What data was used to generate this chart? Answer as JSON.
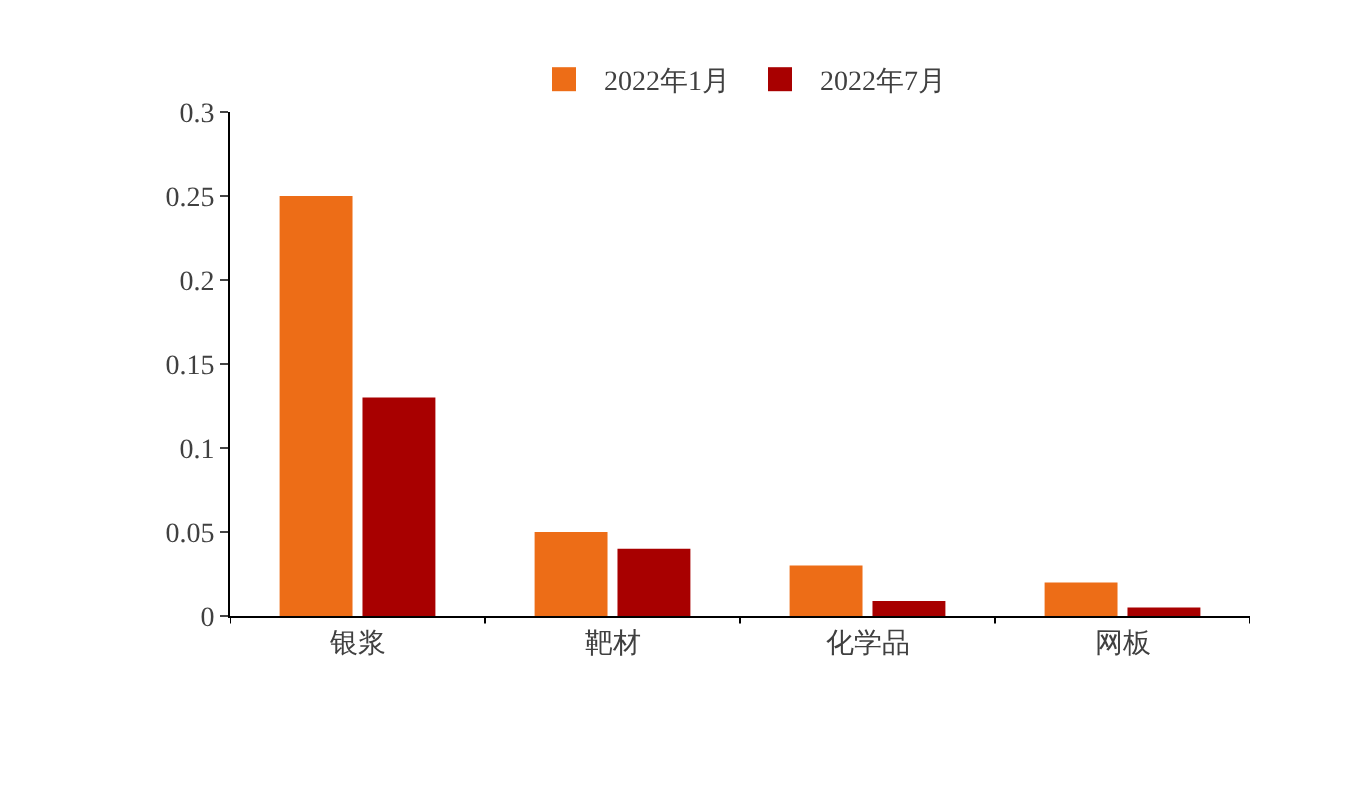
{
  "chart_data": {
    "type": "bar",
    "categories": [
      "银浆",
      "靶材",
      "化学品",
      "网板"
    ],
    "series": [
      {
        "name": "2022年1月",
        "color": "#ed6d17",
        "values": [
          0.25,
          0.05,
          0.03,
          0.02
        ]
      },
      {
        "name": "2022年7月",
        "color": "#a80000",
        "values": [
          0.13,
          0.04,
          0.009,
          0.005
        ]
      }
    ],
    "ylim": [
      0,
      0.3
    ],
    "yticks": [
      {
        "value": 0,
        "label": "0"
      },
      0.05,
      0.1,
      0.15,
      0.2,
      0.25,
      0.3
    ],
    "legend": "top"
  }
}
